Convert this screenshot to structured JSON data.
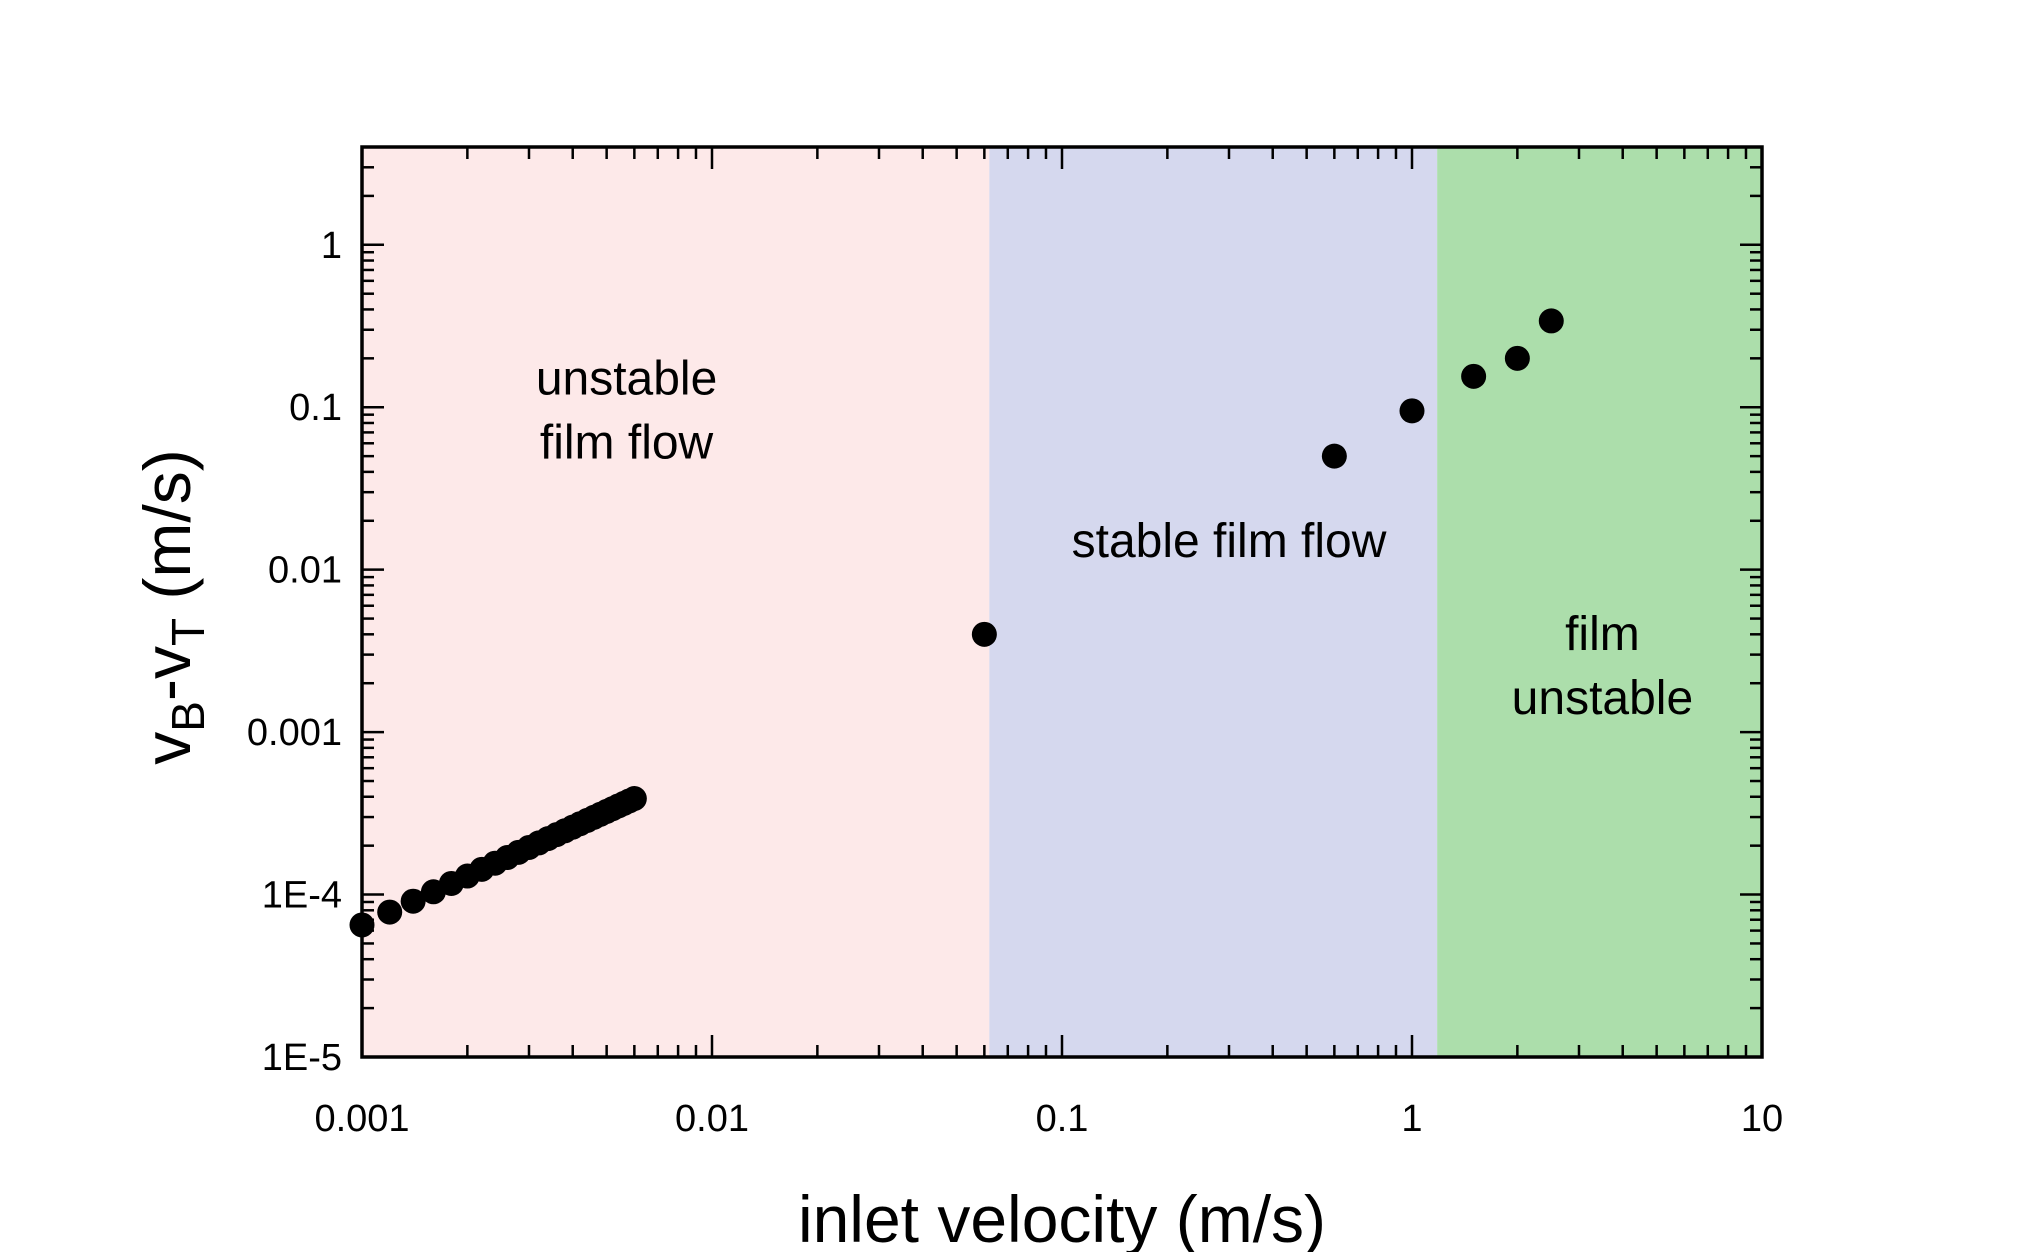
{
  "chart_data": {
    "type": "scatter",
    "title": "",
    "xlabel": "inlet velocity (m/s)",
    "ylabel": {
      "base": "v",
      "sub1": "B",
      "dash": "-v",
      "sub2": "T",
      "unit": " (m/s)"
    },
    "xscale": "log",
    "yscale": "log",
    "xlim": [
      0.001,
      10
    ],
    "ylim": [
      1e-05,
      4
    ],
    "x_ticks": [
      {
        "value": 0.001,
        "label": "0.001"
      },
      {
        "value": 0.01,
        "label": "0.01"
      },
      {
        "value": 0.1,
        "label": "0.1"
      },
      {
        "value": 1,
        "label": "1"
      },
      {
        "value": 10,
        "label": "10"
      }
    ],
    "y_ticks": [
      {
        "value": 1e-05,
        "label": "1E-5"
      },
      {
        "value": 0.0001,
        "label": "1E-4"
      },
      {
        "value": 0.001,
        "label": "0.001"
      },
      {
        "value": 0.01,
        "label": "0.01"
      },
      {
        "value": 0.1,
        "label": "0.1"
      },
      {
        "value": 1,
        "label": "1"
      }
    ],
    "regions": [
      {
        "name": "unstable-film-flow",
        "x_start": 0.001,
        "x_end": 0.062,
        "color": "#fde9e9",
        "label_lines": [
          "unstable",
          "film flow"
        ],
        "label_x": 0.0057,
        "label_y": 0.12
      },
      {
        "name": "stable-film-flow",
        "x_start": 0.062,
        "x_end": 1.18,
        "color": "#d5d8ee",
        "label_lines": [
          "stable film flow"
        ],
        "label_x": 0.3,
        "label_y": 0.012
      },
      {
        "name": "film-unstable",
        "x_start": 1.18,
        "x_end": 10,
        "color": "#acdeab",
        "label_lines": [
          "film",
          "unstable"
        ],
        "label_x": 3.5,
        "label_y": 0.0032
      }
    ],
    "series": [
      {
        "name": "data",
        "color": "#000000",
        "points": [
          {
            "x": 0.001,
            "y": 6.5e-05
          },
          {
            "x": 0.0012,
            "y": 7.8e-05
          },
          {
            "x": 0.0014,
            "y": 9.1e-05
          },
          {
            "x": 0.0016,
            "y": 0.000104
          },
          {
            "x": 0.0018,
            "y": 0.000117
          },
          {
            "x": 0.002,
            "y": 0.00013
          },
          {
            "x": 0.0022,
            "y": 0.000143
          },
          {
            "x": 0.0024,
            "y": 0.000156
          },
          {
            "x": 0.0026,
            "y": 0.000169
          },
          {
            "x": 0.0028,
            "y": 0.000182
          },
          {
            "x": 0.003,
            "y": 0.000195
          },
          {
            "x": 0.0032,
            "y": 0.000208
          },
          {
            "x": 0.0034,
            "y": 0.000221
          },
          {
            "x": 0.0036,
            "y": 0.000234
          },
          {
            "x": 0.0038,
            "y": 0.000247
          },
          {
            "x": 0.004,
            "y": 0.00026
          },
          {
            "x": 0.0042,
            "y": 0.000273
          },
          {
            "x": 0.0044,
            "y": 0.000286
          },
          {
            "x": 0.0046,
            "y": 0.000299
          },
          {
            "x": 0.0048,
            "y": 0.000312
          },
          {
            "x": 0.005,
            "y": 0.000325
          },
          {
            "x": 0.0052,
            "y": 0.000338
          },
          {
            "x": 0.0054,
            "y": 0.000351
          },
          {
            "x": 0.0056,
            "y": 0.000364
          },
          {
            "x": 0.0058,
            "y": 0.000377
          },
          {
            "x": 0.006,
            "y": 0.00039
          },
          {
            "x": 0.06,
            "y": 0.004
          },
          {
            "x": 0.6,
            "y": 0.05
          },
          {
            "x": 1.0,
            "y": 0.095
          },
          {
            "x": 1.5,
            "y": 0.155
          },
          {
            "x": 2.0,
            "y": 0.2
          },
          {
            "x": 2.5,
            "y": 0.34
          }
        ]
      }
    ]
  }
}
